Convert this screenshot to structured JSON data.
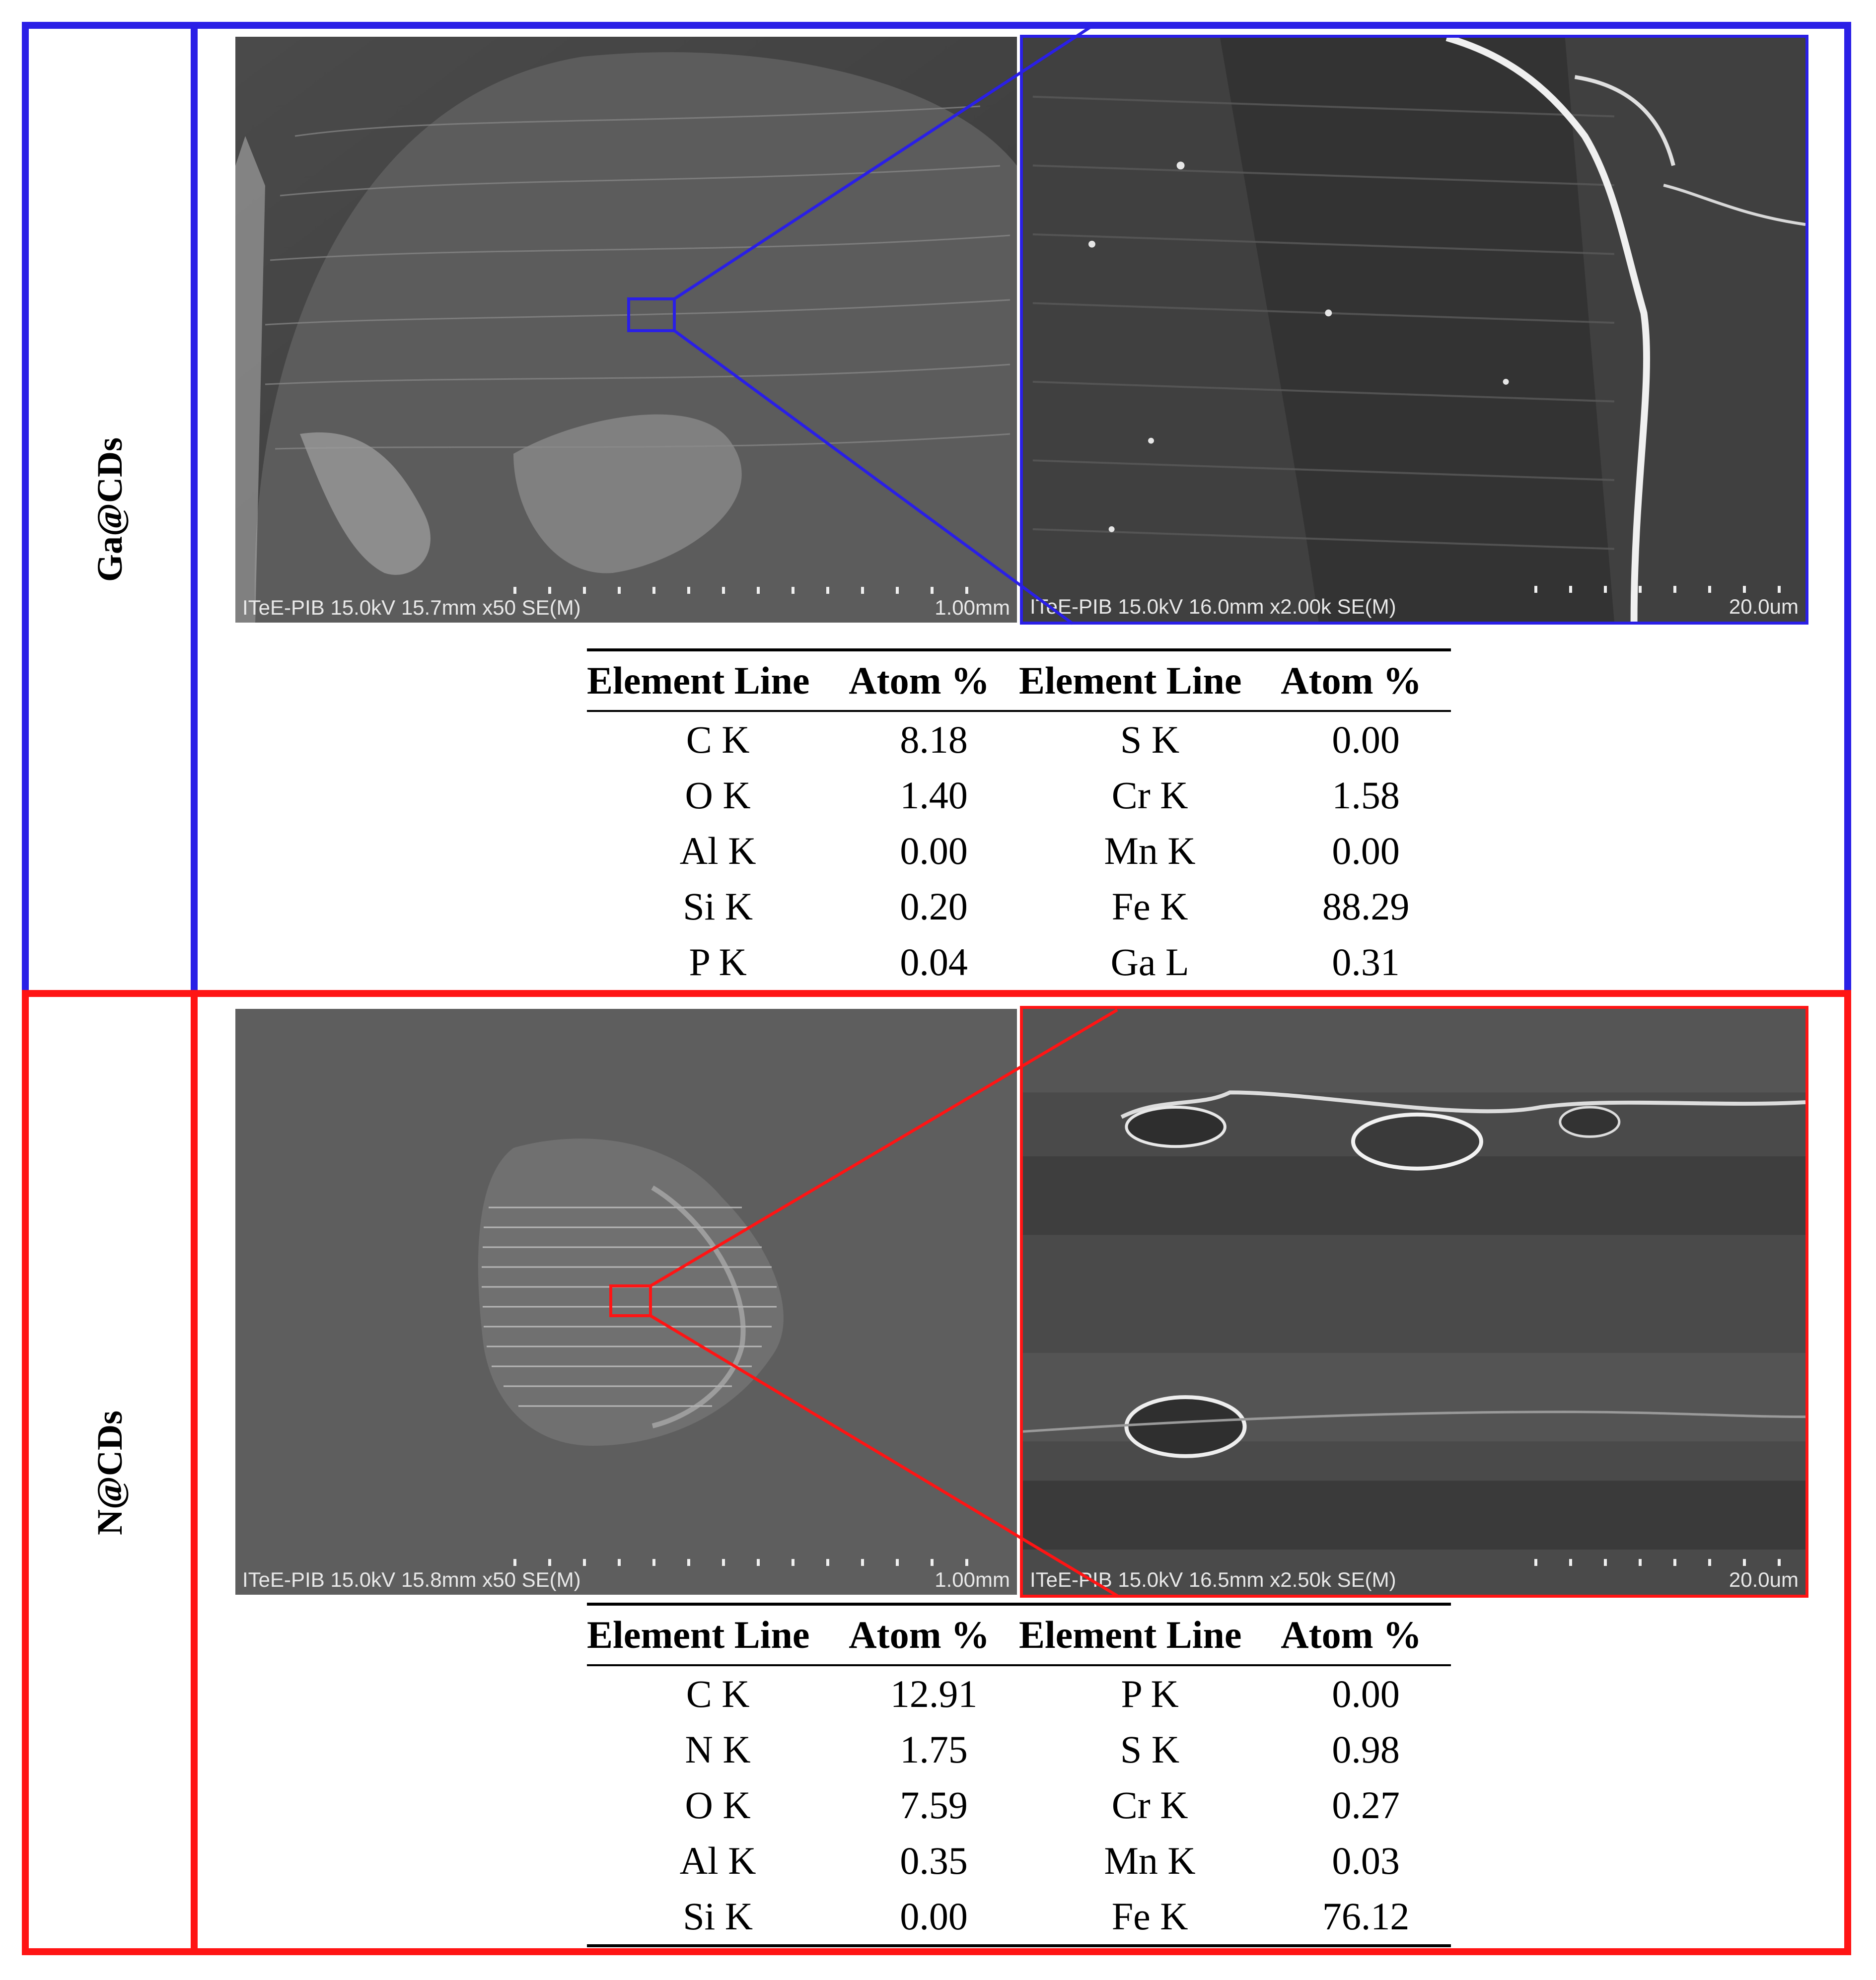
{
  "colors": {
    "ga_frame": "#2a1fe6",
    "n_frame": "#ff1414"
  },
  "panels": [
    {
      "label": "Ga@CDs",
      "sem_low": {
        "caption": "ITeE-PIB 15.0kV 15.7mm x50 SE(M)",
        "scale": "1.00mm"
      },
      "sem_high": {
        "caption": "ITeE-PIB 15.0kV 16.0mm x2.00k SE(M)",
        "scale": "20.0um"
      },
      "table": {
        "headers": [
          "Element Line",
          "Atom %",
          "Element Line",
          "Atom %"
        ],
        "rows": [
          [
            "C K",
            "8.18",
            "S K",
            "0.00"
          ],
          [
            "O K",
            "1.40",
            "Cr K",
            "1.58"
          ],
          [
            "Al K",
            "0.00",
            "Mn K",
            "0.00"
          ],
          [
            "Si K",
            "0.20",
            "Fe K",
            "88.29"
          ],
          [
            "P K",
            "0.04",
            "Ga L",
            "0.31"
          ]
        ]
      }
    },
    {
      "label": "N@CDs",
      "sem_low": {
        "caption": "ITeE-PIB 15.0kV 15.8mm x50 SE(M)",
        "scale": "1.00mm"
      },
      "sem_high": {
        "caption": "ITeE-PIB 15.0kV 16.5mm x2.50k SE(M)",
        "scale": "20.0um"
      },
      "table": {
        "headers": [
          "Element Line",
          "Atom %",
          "Element Line",
          "Atom %"
        ],
        "rows": [
          [
            "C K",
            "12.91",
            "P K",
            "0.00"
          ],
          [
            "N K",
            "1.75",
            "S K",
            "0.98"
          ],
          [
            "O K",
            "7.59",
            "Cr K",
            "0.27"
          ],
          [
            "Al K",
            "0.35",
            "Mn K",
            "0.03"
          ],
          [
            "Si K",
            "0.00",
            "Fe K",
            "76.12"
          ]
        ]
      }
    }
  ]
}
